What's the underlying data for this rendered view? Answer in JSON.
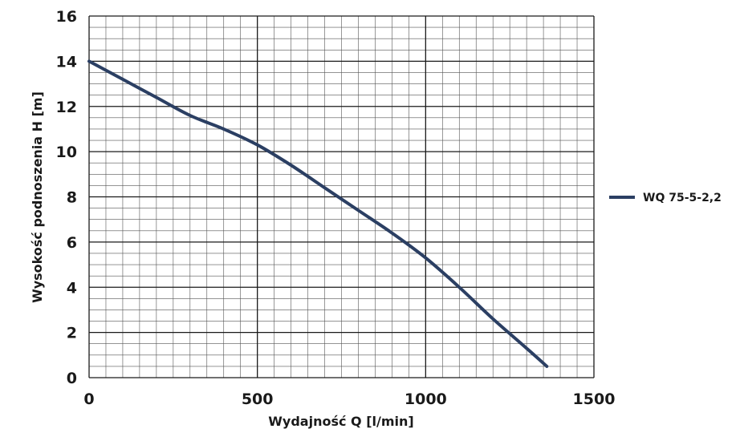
{
  "chart_data": {
    "type": "line",
    "xlabel": "Wydajność Q [l/min]",
    "ylabel": "Wysokość podnoszenia H [m]",
    "xlim": [
      0,
      1500
    ],
    "ylim": [
      0,
      16
    ],
    "x_ticks": [
      0,
      500,
      1000,
      1500
    ],
    "y_ticks": [
      0,
      2,
      4,
      6,
      8,
      10,
      12,
      14,
      16
    ],
    "grid": true,
    "legend_position": "right",
    "series": [
      {
        "name": "WQ 75-5-2,2",
        "color": "#2b3f63",
        "x": [
          0,
          100,
          200,
          300,
          400,
          500,
          600,
          700,
          800,
          900,
          1000,
          1100,
          1200,
          1300,
          1360
        ],
        "y": [
          14.0,
          13.2,
          12.4,
          11.6,
          11.0,
          10.3,
          9.4,
          8.4,
          7.4,
          6.4,
          5.3,
          4.0,
          2.6,
          1.3,
          0.5
        ]
      }
    ]
  }
}
